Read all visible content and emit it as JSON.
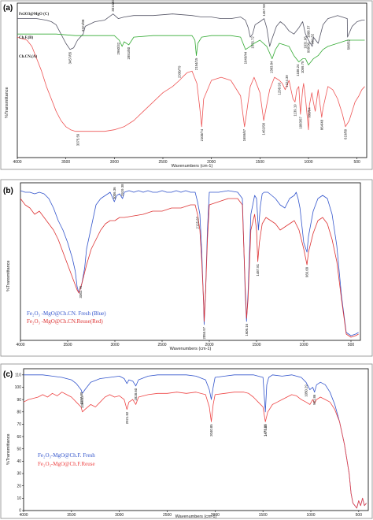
{
  "chart_data": [
    {
      "panel": "(a)",
      "type": "line",
      "xlabel": "Wavenumbers (cm-1)",
      "ylabel": "%Transmittance",
      "xlim": [
        4000,
        400
      ],
      "xticks": [
        "4000",
        "3500",
        "3000",
        "2500",
        "2000",
        "1500",
        "1000",
        "500"
      ],
      "series": [
        {
          "name": "Fe2O3@MgO (C)",
          "color": "#555566",
          "x": [
            4000,
            3900,
            3800,
            3700,
            3650,
            3600,
            3550,
            3500,
            3457,
            3420,
            3380,
            3321,
            3300,
            3200,
            3100,
            3013,
            2960,
            2900,
            2800,
            2600,
            2400,
            2200,
            2100,
            2000,
            1900,
            1800,
            1700,
            1650,
            1620,
            1600,
            1576,
            1550,
            1500,
            1457,
            1430,
            1400,
            1380,
            1330,
            1290,
            1250,
            1200,
            1150,
            1100,
            1060,
            1031,
            1000,
            961,
            950,
            900,
            850,
            800,
            700,
            600,
            598,
            550,
            500,
            450,
            420
          ],
          "y": [
            90,
            90,
            90,
            89,
            88,
            86,
            80,
            74,
            70,
            71,
            76,
            80,
            85,
            88,
            89,
            93,
            90,
            91,
            92,
            92,
            93,
            92,
            91,
            91,
            90,
            90,
            91,
            89,
            84,
            78,
            80,
            86,
            88,
            90,
            84,
            72,
            76,
            85,
            88,
            86,
            82,
            80,
            84,
            88,
            80,
            76,
            72,
            78,
            74,
            86,
            90,
            92,
            90,
            78,
            85,
            88,
            89,
            89
          ]
        },
        {
          "name": "Ch.F.(B)",
          "color": "#33aa33",
          "x": [
            4000,
            3800,
            3600,
            3400,
            3200,
            3000,
            2950,
            2920,
            2900,
            2851,
            2800,
            2600,
            2400,
            2200,
            2170,
            2155,
            2140,
            2100,
            2000,
            1800,
            1700,
            1649,
            1600,
            1560,
            1500,
            1430,
            1375,
            1340,
            1300,
            1200,
            1150,
            1100,
            1059,
            1030,
            1000,
            950,
            900,
            850,
            800,
            700,
            600,
            500,
            420
          ],
          "y": [
            80,
            80,
            80,
            79,
            79,
            79,
            76,
            72,
            75,
            73,
            78,
            79,
            79,
            79,
            76,
            66,
            74,
            78,
            79,
            79,
            78,
            70,
            72,
            74,
            76,
            72,
            64,
            70,
            74,
            72,
            66,
            62,
            64,
            64,
            60,
            64,
            66,
            70,
            72,
            74,
            76,
            76,
            76
          ]
        },
        {
          "name": "Ch.CN.(A)",
          "color": "#ee5555",
          "x": [
            4000,
            3950,
            3900,
            3850,
            3800,
            3750,
            3700,
            3650,
            3600,
            3550,
            3500,
            3450,
            3400,
            3375,
            3300,
            3200,
            3100,
            3000,
            2900,
            2800,
            2700,
            2600,
            2500,
            2400,
            2330,
            2300,
            2250,
            2200,
            2150,
            2120,
            2100,
            2080,
            2000,
            1900,
            1800,
            1700,
            1659,
            1640,
            1600,
            1560,
            1500,
            1461,
            1400,
            1350,
            1300,
            1270,
            1240,
            1200,
            1180,
            1160,
            1139,
            1120,
            1100,
            1083,
            1060,
            1050,
            1030,
            1000,
            990,
            965,
            950,
            930,
            900,
            864,
            850,
            800,
            750,
            700,
            650,
            619,
            580,
            550,
            520,
            480,
            450,
            420
          ],
          "y": [
            78,
            77,
            76,
            72,
            64,
            56,
            46,
            38,
            30,
            24,
            20,
            18,
            17,
            17,
            17,
            17,
            17,
            18,
            20,
            24,
            30,
            36,
            42,
            46,
            50,
            52,
            55,
            56,
            48,
            32,
            20,
            38,
            50,
            52,
            50,
            40,
            20,
            28,
            46,
            52,
            42,
            24,
            44,
            52,
            50,
            48,
            44,
            50,
            44,
            38,
            36,
            44,
            46,
            28,
            44,
            48,
            38,
            18,
            34,
            42,
            36,
            30,
            44,
            26,
            32,
            46,
            44,
            38,
            28,
            20,
            24,
            30,
            36,
            40,
            44,
            46
          ]
        }
      ],
      "annotations": [
        "3457/65",
        "3321/08",
        "3013/83",
        "2960/32",
        "2851/80",
        "2154/15",
        "1576.72",
        "1649/44",
        "1457.59",
        "1383.84",
        "1031.06",
        "1000.57",
        "1059.75",
        "1108.24",
        "998/30",
        "961.52",
        "586/52",
        "3375.59",
        "2330/79",
        "2100/74",
        "1659/67",
        "1461/90",
        "1298.93",
        "1224.39",
        "1083/67",
        "1139.19",
        "990/84",
        "864/48",
        "619/89"
      ]
    },
    {
      "panel": "(b)",
      "type": "line",
      "xlabel": "Wavenumbers (cm-1)",
      "ylabel": "%Transmittance",
      "xlim": [
        4000,
        400
      ],
      "xticks": [
        "4000",
        "3500",
        "3000",
        "2500",
        "2000",
        "1500",
        "1000",
        "500"
      ],
      "legend": [
        "Fe₂O₃ -MgO@Ch.CN. Fresh (Blue)",
        "Fe₂O₃ -MgO@Ch.CN.Reuse(Red)"
      ],
      "series": [
        {
          "name": "Fe2O3-MgO@Ch.CN. Fresh (Blue)",
          "color": "#3355cc",
          "x": [
            4000,
            3950,
            3900,
            3850,
            3800,
            3750,
            3700,
            3650,
            3600,
            3550,
            3500,
            3450,
            3420,
            3400,
            3380,
            3350,
            3320,
            3300,
            3250,
            3200,
            3150,
            3100,
            3050,
            3006,
            2980,
            2950,
            2919,
            2900,
            2850,
            2800,
            2750,
            2700,
            2650,
            2600,
            2550,
            2500,
            2450,
            2400,
            2350,
            2300,
            2250,
            2200,
            2150,
            2125,
            2100,
            2080,
            2060,
            2055,
            2040,
            2020,
            2000,
            1900,
            1800,
            1700,
            1650,
            1620,
            1606,
            1590,
            1560,
            1520,
            1500,
            1480,
            1460,
            1440,
            1420,
            1380,
            1340,
            1300,
            1250,
            1200,
            1150,
            1100,
            1080,
            1060,
            1040,
            1000,
            966,
            950,
            900,
            850,
            800,
            750,
            700,
            650,
            600,
            550,
            500,
            450,
            420
          ],
          "y": [
            95,
            94,
            94,
            93,
            94,
            93,
            90,
            84,
            76,
            70,
            62,
            52,
            44,
            34,
            30,
            36,
            46,
            58,
            72,
            86,
            90,
            92,
            94,
            88,
            92,
            93,
            90,
            94,
            95,
            94,
            95,
            94,
            95,
            94,
            94,
            95,
            94,
            94,
            95,
            94,
            95,
            94,
            94,
            88,
            80,
            56,
            22,
            10,
            30,
            70,
            94,
            94,
            95,
            94,
            90,
            30,
            12,
            30,
            80,
            92,
            90,
            70,
            85,
            93,
            94,
            94,
            92,
            90,
            86,
            84,
            90,
            92,
            94,
            90,
            84,
            62,
            56,
            66,
            82,
            90,
            92,
            90,
            80,
            60,
            28,
            5,
            3,
            4,
            5
          ]
        },
        {
          "name": "Fe2O3-MgO@Ch.CN.Reuse(Red)",
          "color": "#dd3333",
          "x": [
            4000,
            3950,
            3900,
            3850,
            3800,
            3750,
            3700,
            3650,
            3600,
            3550,
            3500,
            3450,
            3400,
            3380,
            3350,
            3300,
            3250,
            3200,
            3150,
            3100,
            3050,
            3000,
            2950,
            2900,
            2800,
            2700,
            2600,
            2500,
            2400,
            2300,
            2200,
            2150,
            2125,
            2100,
            2080,
            2060,
            2055,
            2040,
            2020,
            2000,
            1900,
            1800,
            1700,
            1650,
            1620,
            1606,
            1590,
            1560,
            1520,
            1500,
            1487,
            1470,
            1440,
            1400,
            1350,
            1300,
            1250,
            1200,
            1150,
            1100,
            1050,
            1000,
            966,
            950,
            900,
            850,
            800,
            750,
            700,
            650,
            600,
            550,
            500,
            450,
            420
          ],
          "y": [
            90,
            86,
            84,
            80,
            82,
            78,
            74,
            70,
            64,
            56,
            48,
            40,
            32,
            30,
            36,
            48,
            58,
            64,
            70,
            74,
            76,
            76,
            78,
            78,
            79,
            80,
            82,
            82,
            84,
            84,
            86,
            86,
            80,
            70,
            50,
            24,
            12,
            30,
            64,
            86,
            88,
            90,
            90,
            86,
            34,
            14,
            26,
            70,
            80,
            70,
            50,
            62,
            74,
            78,
            76,
            74,
            70,
            72,
            74,
            76,
            70,
            58,
            48,
            56,
            68,
            76,
            78,
            74,
            64,
            50,
            26,
            4,
            2,
            3,
            4
          ]
        }
      ],
      "annotations": [
        "3006.36",
        "2919.38",
        "3362.76",
        "2125.67",
        "2055.97",
        "1606.16",
        "1487.81",
        "966.68"
      ]
    },
    {
      "panel": "(c)",
      "type": "line",
      "xlabel": "Wavenumbers (cm-1)",
      "ylabel": "%Transmittance",
      "xlim": [
        4000,
        400
      ],
      "ylim": [
        0,
        115
      ],
      "xticks": [
        "4000",
        "3500",
        "3000",
        "2500",
        "2000",
        "1500",
        "1000",
        "500"
      ],
      "yticks": [
        "0",
        "10",
        "20",
        "30",
        "40",
        "50",
        "60",
        "70",
        "80",
        "90",
        "100",
        "110"
      ],
      "legend": [
        "Fe₂O₃-MgO@Ch.F. Fresh",
        "Fe₂O₃-MgO@Ch.F.Reuse"
      ],
      "series": [
        {
          "name": "Fe2O3-MgO@Ch.F. Fresh",
          "color": "#3355cc",
          "x": [
            4000,
            3900,
            3800,
            3700,
            3600,
            3500,
            3450,
            3400,
            3386,
            3360,
            3300,
            3200,
            3100,
            3000,
            2950,
            2921,
            2900,
            2860,
            2828,
            2800,
            2700,
            2600,
            2500,
            2400,
            2300,
            2200,
            2100,
            2060,
            2040,
            2020,
            2000,
            1900,
            1800,
            1700,
            1600,
            1500,
            1475,
            1460,
            1440,
            1400,
            1300,
            1200,
            1100,
            1050,
            1010,
            980,
            961,
            940,
            900,
            850,
            800,
            750,
            700,
            650,
            600,
            580,
            560,
            540,
            520,
            500,
            480,
            460,
            440,
            420
          ],
          "y": [
            110,
            110,
            110,
            109,
            108,
            106,
            103,
            98,
            95,
            98,
            104,
            107,
            108,
            109,
            107,
            103,
            106,
            105,
            101,
            106,
            109,
            110,
            110,
            110,
            110,
            109,
            106,
            98,
            90,
            100,
            108,
            109,
            110,
            110,
            110,
            108,
            80,
            102,
            108,
            110,
            109,
            110,
            108,
            104,
            98,
            100,
            96,
            102,
            104,
            102,
            96,
            86,
            72,
            54,
            30,
            14,
            6,
            4,
            2,
            8,
            4,
            10,
            4,
            6
          ]
        },
        {
          "name": "Fe2O3-MgO@Ch.F.Reuse",
          "color": "#ee4444",
          "x": [
            4000,
            3950,
            3900,
            3850,
            3800,
            3750,
            3700,
            3650,
            3600,
            3550,
            3500,
            3450,
            3400,
            3386,
            3360,
            3300,
            3250,
            3200,
            3150,
            3100,
            3050,
            3000,
            2950,
            2921,
            2900,
            2860,
            2828,
            2800,
            2700,
            2600,
            2500,
            2400,
            2300,
            2200,
            2100,
            2060,
            2040,
            2020,
            2000,
            1900,
            1800,
            1700,
            1650,
            1600,
            1550,
            1500,
            1475,
            1450,
            1400,
            1350,
            1300,
            1250,
            1200,
            1150,
            1100,
            1050,
            1010,
            980,
            961,
            940,
            900,
            850,
            800,
            750,
            700,
            650,
            600,
            580,
            560,
            540,
            520,
            500,
            480,
            460,
            440,
            420
          ],
          "y": [
            88,
            90,
            91,
            92,
            94,
            92,
            95,
            93,
            96,
            94,
            92,
            88,
            84,
            80,
            82,
            86,
            84,
            88,
            92,
            94,
            92,
            93,
            90,
            82,
            88,
            90,
            86,
            92,
            94,
            95,
            95,
            96,
            95,
            96,
            94,
            84,
            72,
            86,
            94,
            95,
            96,
            96,
            95,
            92,
            88,
            84,
            72,
            80,
            86,
            88,
            90,
            92,
            94,
            93,
            90,
            88,
            86,
            90,
            87,
            90,
            92,
            90,
            88,
            82,
            72,
            54,
            30,
            14,
            6,
            4,
            2,
            8,
            4,
            10,
            4,
            6
          ]
        }
      ],
      "annotations": [
        "3386.33",
        "3397.89",
        "2921.82",
        "2828.60",
        "2040.85",
        "1475.96",
        "1474.09",
        "1050.29",
        "961.86"
      ]
    }
  ]
}
